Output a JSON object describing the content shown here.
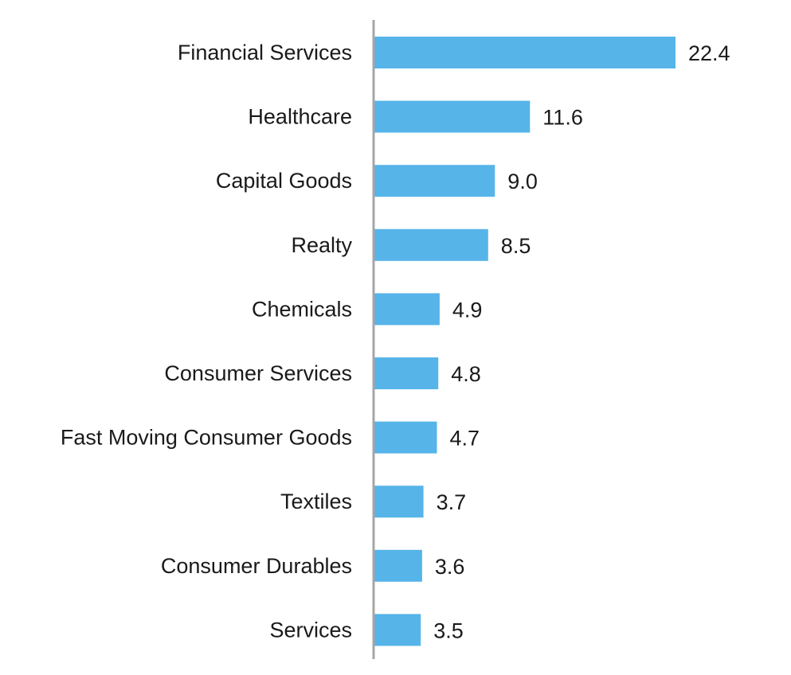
{
  "chart_data": {
    "type": "bar",
    "orientation": "horizontal",
    "title": "",
    "xlabel": "",
    "ylabel": "",
    "categories": [
      "Financial Services",
      "Healthcare",
      "Capital Goods",
      "Realty",
      "Chemicals",
      "Consumer Services",
      "Fast Moving Consumer Goods",
      "Textiles",
      "Consumer Durables",
      "Services"
    ],
    "values": [
      22.4,
      11.6,
      9.0,
      8.5,
      4.9,
      4.8,
      4.7,
      3.7,
      3.6,
      3.5
    ],
    "value_labels": [
      "22.4",
      "11.6",
      "9.0",
      "8.5",
      "4.9",
      "4.8",
      "4.7",
      "3.7",
      "3.6",
      "3.5"
    ],
    "xlim": [
      0,
      25
    ],
    "grid": false,
    "legend": "none",
    "bar_color": "#56b4e9",
    "axis_color": "#a6a6a6"
  }
}
